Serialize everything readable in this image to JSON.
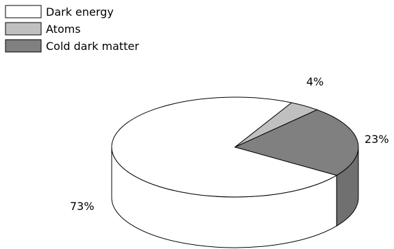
{
  "chart_data": {
    "type": "pie",
    "style": "3d",
    "legend_position": "top-left",
    "slices": [
      {
        "label": "Dark energy",
        "value": 73,
        "display": "73%",
        "color": "#ffffff",
        "side_color": "#ffffff"
      },
      {
        "label": "Atoms",
        "value": 4,
        "display": "4%",
        "color": "#c0c0c0",
        "side_color": "#a8a8a8"
      },
      {
        "label": "Cold dark matter",
        "value": 23,
        "display": "23%",
        "color": "#808080",
        "side_color": "#707070"
      }
    ]
  }
}
